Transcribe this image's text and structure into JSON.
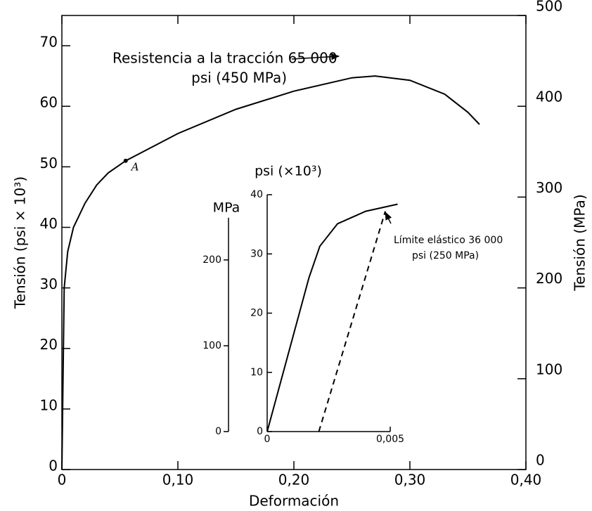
{
  "chart_data": [
    {
      "type": "line",
      "x_label": "Deformación",
      "y_label": "Tensión (psi × 10³)",
      "y2_label": "Tensión (MPa)",
      "xlim": [
        0,
        0.4
      ],
      "xticks": [
        0,
        {
          "value": 0.1,
          "label": "0,10"
        },
        {
          "value": 0.2,
          "label": "0,20"
        },
        {
          "value": 0.3,
          "label": "0,30"
        },
        {
          "value": 0.4,
          "label": "0,40"
        }
      ],
      "ylim": [
        0,
        75
      ],
      "yticks": [
        0,
        10,
        20,
        30,
        40,
        50,
        60,
        70
      ],
      "y2lim": [
        0,
        500
      ],
      "y2ticks": [
        0,
        100,
        200,
        300,
        400,
        500
      ],
      "series": [
        {
          "color": "#000000",
          "dash": false,
          "x": [
            0,
            0.002,
            0.005,
            0.01,
            0.02,
            0.03,
            0.04,
            0.055,
            0.08,
            0.1,
            0.15,
            0.2,
            0.25,
            0.27,
            0.3,
            0.33,
            0.35,
            0.36
          ],
          "values": [
            0,
            30,
            36,
            40,
            44,
            47,
            49,
            51,
            53.5,
            55.5,
            59.5,
            62.5,
            64.7,
            65,
            64.3,
            62,
            59,
            57
          ]
        }
      ],
      "marker": {
        "label": "A",
        "x": 0.055,
        "y": 51
      },
      "annotation": [
        "Resistencia a la tracción 65 000",
        "psi (450 MPa)"
      ]
    },
    {
      "type": "line",
      "y_label": "psi (×10³)",
      "y2_label": "MPa",
      "xlim": [
        0,
        0.005
      ],
      "xticks": [
        0,
        {
          "value": 0.005,
          "label": "0,005"
        }
      ],
      "ylim": [
        0,
        40
      ],
      "yticks": [
        0,
        10,
        20,
        30,
        40
      ],
      "y2lim": [
        0,
        276
      ],
      "y2ticks": [
        0,
        100,
        200
      ],
      "series": [
        {
          "color": "#000000",
          "dash": false,
          "x": [
            0,
            0.0017,
            0.00214,
            0.00286,
            0.004,
            0.0053
          ],
          "values": [
            0,
            26,
            31.3,
            35.1,
            37.2,
            38.4
          ]
        },
        {
          "color": "#000000",
          "dash": true,
          "x": [
            0.0021,
            0.0048
          ],
          "values": [
            0,
            37.2
          ]
        }
      ],
      "annotation": [
        "Límite elástico 36 000",
        "psi (250 MPa)"
      ]
    }
  ]
}
